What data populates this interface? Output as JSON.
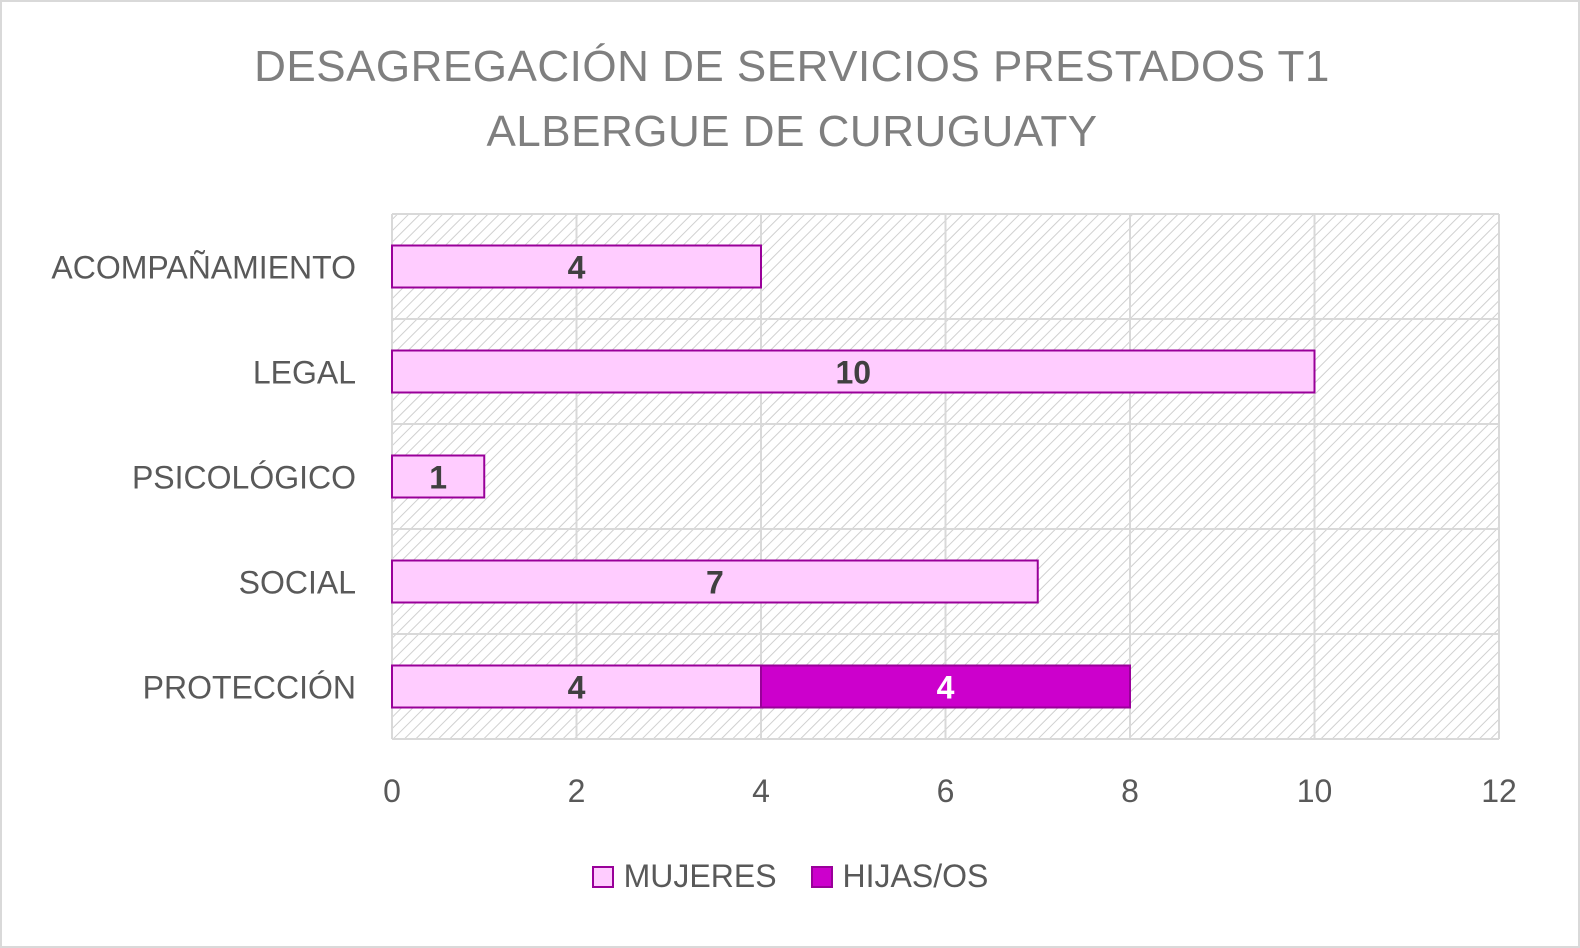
{
  "chart_data": {
    "type": "bar",
    "orientation": "horizontal",
    "stacked": true,
    "title": [
      "DESAGREGACIÓN DE SERVICIOS PRESTADOS T1",
      "ALBERGUE DE CURUGUATY"
    ],
    "categories": [
      "ACOMPAÑAMIENTO",
      "LEGAL",
      "PSICOLÓGICO",
      "SOCIAL",
      "PROTECCIÓN"
    ],
    "series": [
      {
        "name": "MUJERES",
        "values": [
          4,
          10,
          1,
          7,
          4
        ],
        "fill": "#ffccff",
        "stroke": "#990099",
        "label_color": "#404040"
      },
      {
        "name": "HIJAS/OS",
        "values": [
          0,
          0,
          0,
          0,
          4
        ],
        "fill": "#cc00cc",
        "stroke": "#990099",
        "label_color": "#ffffff"
      }
    ],
    "xlim": [
      0,
      12
    ],
    "xticks": [
      0,
      2,
      4,
      6,
      8,
      10,
      12
    ],
    "xlabel": "",
    "ylabel": "",
    "grid": true,
    "legend_position": "bottom"
  }
}
